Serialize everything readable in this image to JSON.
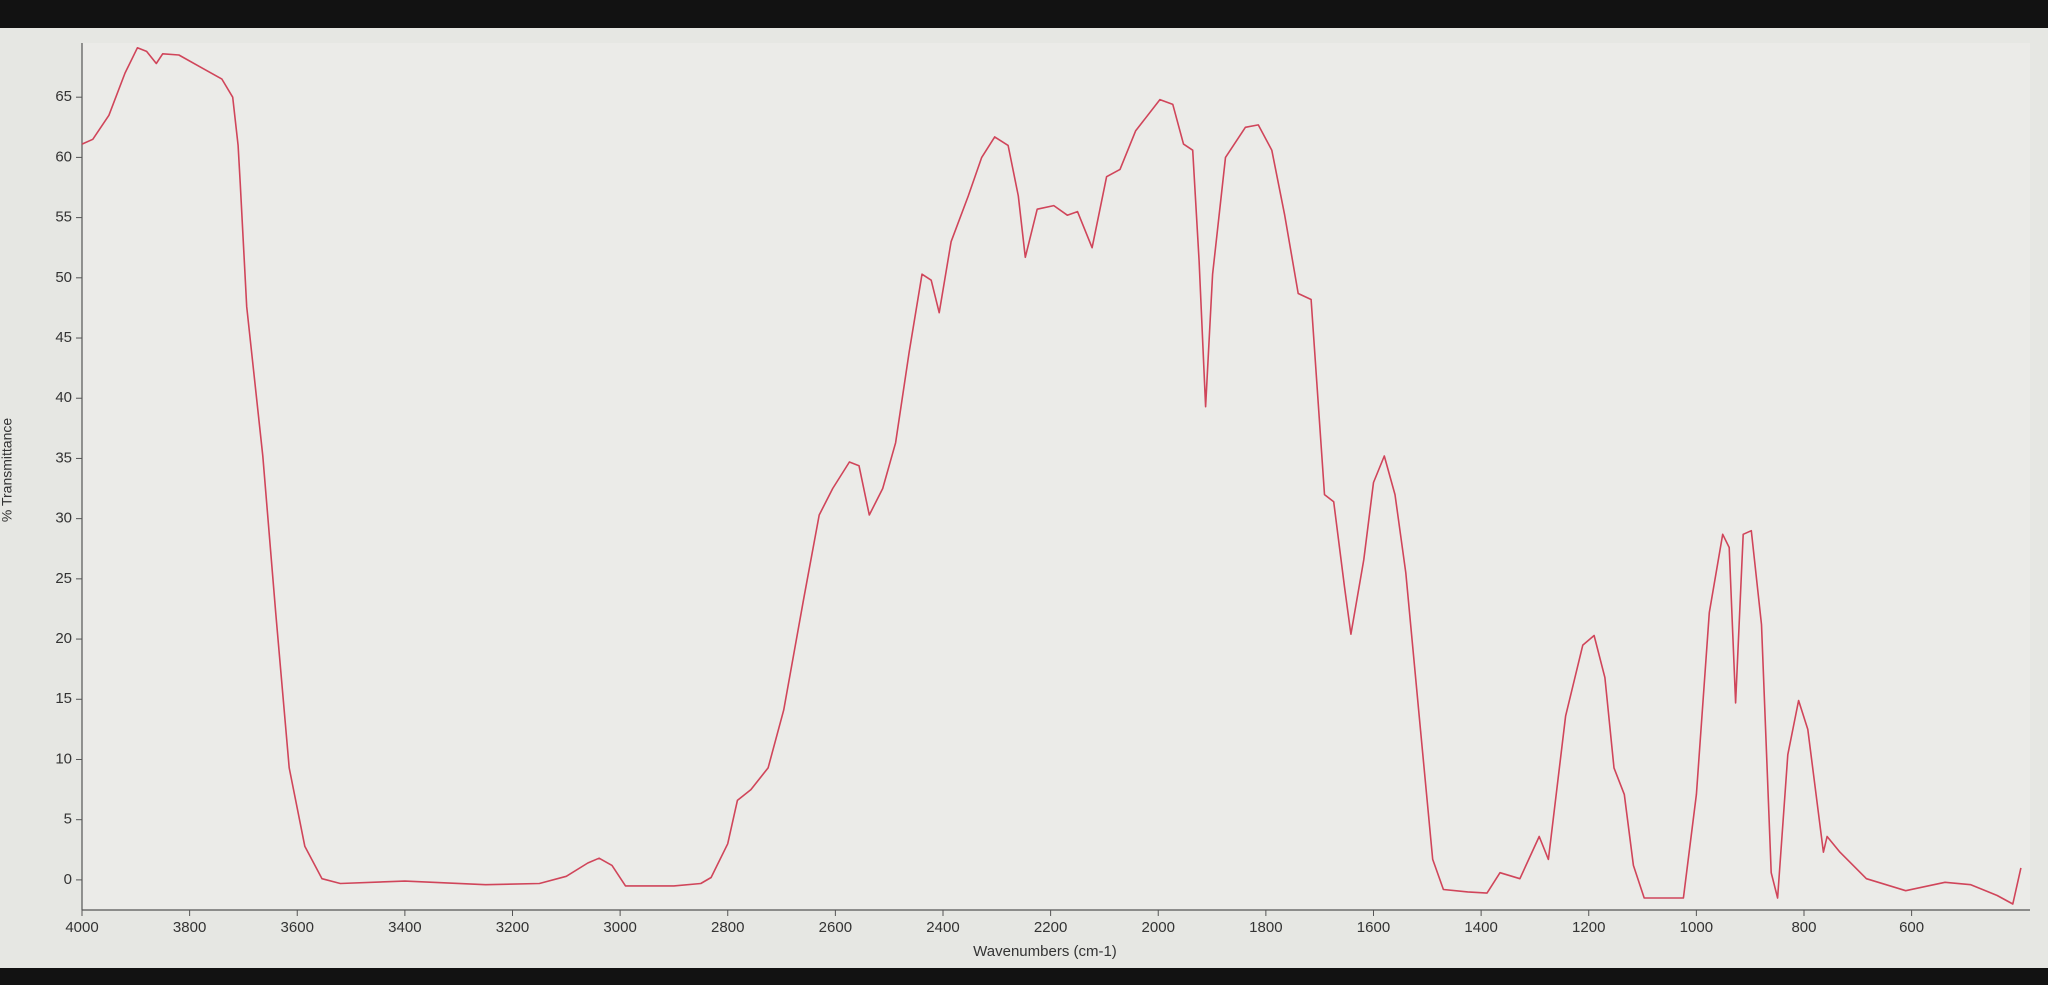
{
  "chart_data": {
    "type": "line",
    "xlabel": "Wavenumbers (cm-1)",
    "ylabel": "% Transmittance",
    "color": "#d0455a",
    "xlim": [
      4000,
      380
    ],
    "ylim": [
      -2.5,
      69.5
    ],
    "xticks": [
      4000,
      3800,
      3600,
      3400,
      3200,
      3000,
      2800,
      2600,
      2400,
      2200,
      2000,
      1800,
      1600,
      1400,
      1200,
      1000,
      800,
      600
    ],
    "yticks": [
      0,
      5,
      10,
      15,
      20,
      25,
      30,
      35,
      40,
      45,
      50,
      55,
      60,
      65
    ],
    "x": [
      4000,
      3980,
      3950,
      3920,
      3897,
      3880,
      3862,
      3850,
      3820,
      3780,
      3740,
      3720,
      3710,
      3706,
      3694,
      3664,
      3640,
      3615,
      3586,
      3554,
      3520,
      3400,
      3250,
      3150,
      3100,
      3060,
      3039,
      3015,
      2990,
      2900,
      2850,
      2831,
      2800,
      2782,
      2757,
      2725,
      2696,
      2659,
      2630,
      2605,
      2574,
      2556,
      2537,
      2512,
      2488,
      2463,
      2439,
      2422,
      2407,
      2385,
      2353,
      2328,
      2304,
      2279,
      2260,
      2247,
      2225,
      2194,
      2169,
      2150,
      2123,
      2096,
      2071,
      2042,
      1997,
      1973,
      1953,
      1936,
      1924,
      1912,
      1899,
      1875,
      1838,
      1814,
      1789,
      1765,
      1740,
      1716,
      1691,
      1674,
      1654,
      1642,
      1618,
      1600,
      1580,
      1560,
      1540,
      1515,
      1490,
      1470,
      1425,
      1389,
      1365,
      1328,
      1292,
      1275,
      1243,
      1211,
      1190,
      1170,
      1153,
      1134,
      1117,
      1097,
      1024,
      1000,
      976,
      951,
      939,
      927,
      913,
      898,
      879,
      861,
      849,
      830,
      810,
      793,
      764,
      757,
      733,
      684,
      611,
      538,
      490,
      441,
      412,
      397
    ],
    "values": [
      61.1,
      61.5,
      63.5,
      67,
      69.1,
      68.8,
      67.8,
      68.6,
      68.5,
      67.5,
      66.5,
      65,
      61,
      57.9,
      47.6,
      35.2,
      22.2,
      9.3,
      2.8,
      0.1,
      -0.3,
      -0.1,
      -0.4,
      -0.3,
      0.3,
      1.4,
      1.8,
      1.2,
      -0.5,
      -0.5,
      -0.3,
      0.2,
      3,
      6.6,
      7.5,
      9.3,
      14.1,
      23.3,
      30.3,
      32.5,
      34.7,
      34.4,
      30.3,
      32.5,
      36.3,
      43.8,
      50.3,
      49.8,
      47.1,
      53,
      56.8,
      60,
      61.7,
      61,
      56.8,
      51.7,
      55.7,
      56,
      55.2,
      55.5,
      52.5,
      58.4,
      59,
      62.2,
      64.8,
      64.4,
      61.1,
      60.6,
      51.4,
      39.3,
      50.3,
      60,
      62.5,
      62.7,
      60.6,
      55.2,
      48.7,
      48.2,
      32,
      31.4,
      24.4,
      20.4,
      26.6,
      33,
      35.2,
      32,
      25.5,
      13.6,
      1.7,
      -0.8,
      -1,
      -1.1,
      0.6,
      0.1,
      3.6,
      1.7,
      13.6,
      19.5,
      20.3,
      16.8,
      9.3,
      7.1,
      1.2,
      -1.5,
      -1.5,
      7.1,
      22.2,
      28.7,
      27.6,
      14.7,
      28.7,
      29,
      21.2,
      0.6,
      -1.5,
      10.4,
      14.9,
      12.5,
      2.3,
      3.6,
      2.3,
      0.1,
      -0.9,
      -0.2,
      -0.4,
      -1.3,
      -2,
      1
    ]
  }
}
